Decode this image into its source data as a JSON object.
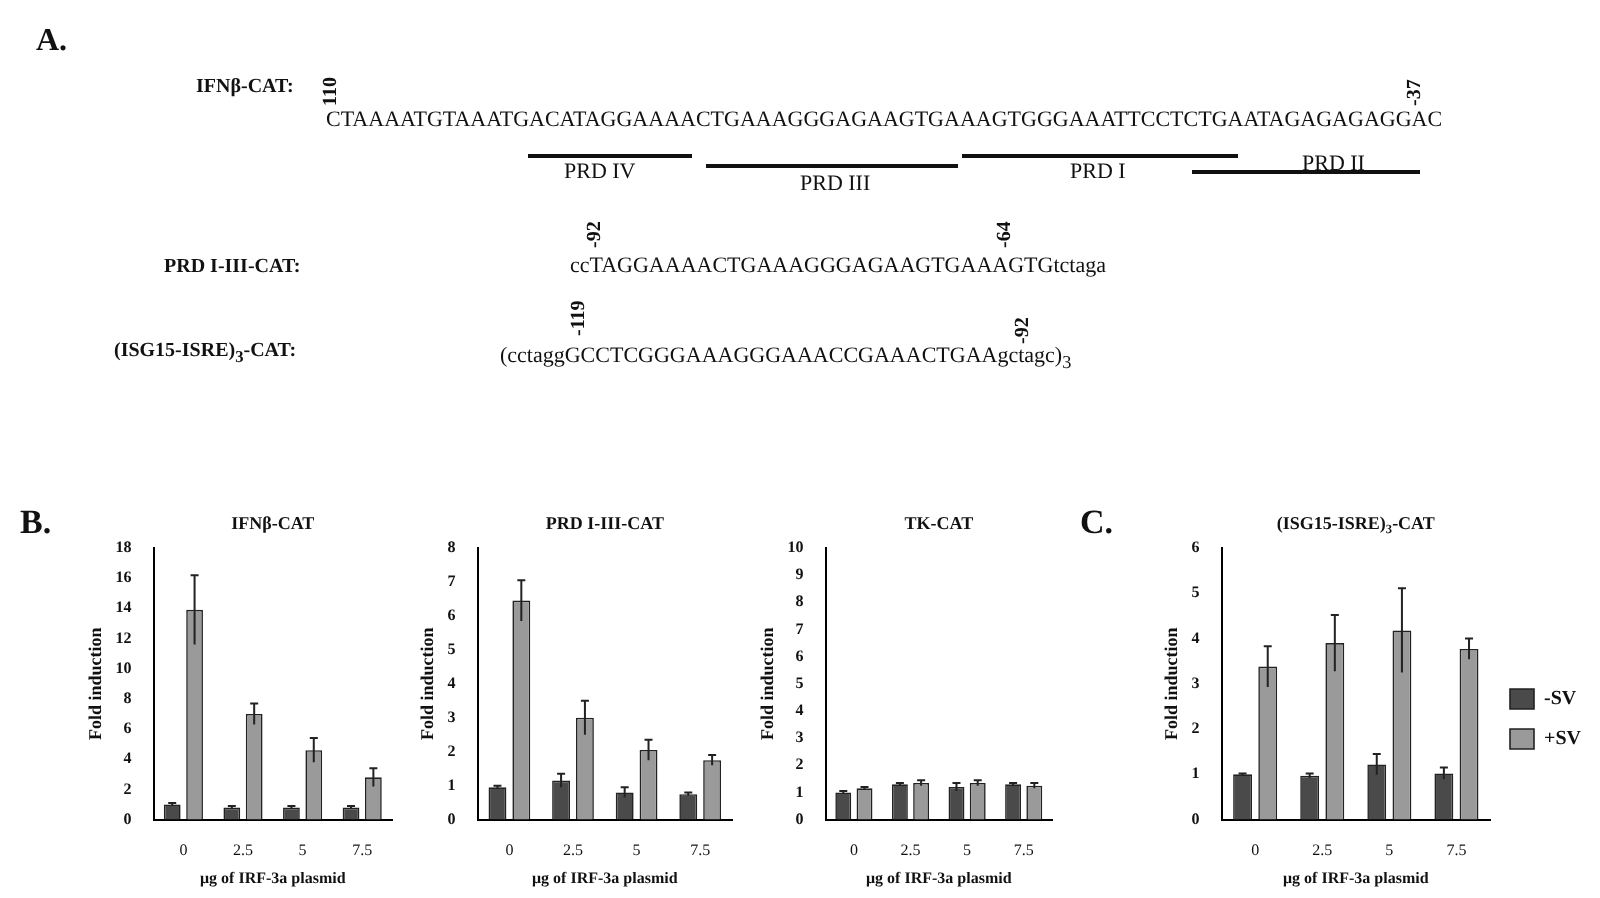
{
  "chart_data": [
    {
      "type": "other",
      "annotations": [
        "A.",
        "IFNβ-CAT:",
        "CTAAAATGTAAATGACATAGGAAAACTGAAAGGGAGAAGTGAAAGTGGGAAATTCCTCTGAATAGAGAGAGGAC",
        "110",
        "-37",
        "PRD IV",
        "PRD III",
        "PRD I",
        "PRD II",
        "PRD I-III-CAT:",
        "ccTAGGAAAACTGAAAGGGAGAAGTGAAAGTGtctaga",
        "-92",
        "-64",
        "(ISG15-ISRE)$_{3}$-CAT:",
        "(cctaggGCCTCGGGAAAGGGAAACCGAAACTGAAgctagc)$_{3}$",
        "-119",
        "-92"
      ]
    },
    {
      "type": "bar",
      "title": "IFNβ-CAT",
      "annotations": [
        "B."
      ],
      "xlabel": "μg of IRF-3a plasmid",
      "ylabel": "Fold induction",
      "categories": [
        "0",
        "2.5",
        "5",
        "7.5"
      ],
      "ylim": [
        0,
        18
      ],
      "yticks": [
        0,
        2,
        4,
        6,
        8,
        10,
        12,
        14,
        16,
        18
      ],
      "legend": false,
      "series": [
        {
          "color": "#4a4a4a",
          "values": [
            1.0,
            0.8,
            0.8,
            0.8
          ],
          "errors": [
            0.1,
            0.1,
            0.1,
            0.1
          ]
        },
        {
          "color": "#9a9a9a",
          "values": [
            13.9,
            7.0,
            4.6,
            2.8
          ],
          "errors": [
            2.3,
            0.7,
            0.8,
            0.6
          ]
        }
      ]
    },
    {
      "type": "bar",
      "title": "PRD I-III-CAT",
      "xlabel": "μg of IRF-3a plasmid",
      "ylabel": "Fold induction",
      "categories": [
        "0",
        "2.5",
        "5",
        "7.5"
      ],
      "ylim": [
        0,
        8
      ],
      "yticks": [
        0,
        1,
        2,
        3,
        4,
        5,
        6,
        7,
        8
      ],
      "legend": false,
      "series": [
        {
          "color": "#4a4a4a",
          "values": [
            0.95,
            1.15,
            0.8,
            0.75
          ],
          "errors": [
            0.05,
            0.2,
            0.15,
            0.05
          ]
        },
        {
          "color": "#9a9a9a",
          "values": [
            6.45,
            3.0,
            2.05,
            1.75
          ],
          "errors": [
            0.6,
            0.5,
            0.3,
            0.15
          ]
        }
      ]
    },
    {
      "type": "bar",
      "title": "TK-CAT",
      "xlabel": "μg of IRF-3a plasmid",
      "ylabel": "Fold induction",
      "categories": [
        "0",
        "2.5",
        "5",
        "7.5"
      ],
      "ylim": [
        0,
        10
      ],
      "yticks": [
        0,
        1,
        2,
        3,
        4,
        5,
        6,
        7,
        8,
        9,
        10
      ],
      "legend": false,
      "series": [
        {
          "color": "#4a4a4a",
          "values": [
            1.0,
            1.3,
            1.2,
            1.3
          ],
          "errors": [
            0.05,
            0.05,
            0.15,
            0.05
          ]
        },
        {
          "color": "#9a9a9a",
          "values": [
            1.15,
            1.35,
            1.35,
            1.25
          ],
          "errors": [
            0.05,
            0.1,
            0.1,
            0.1
          ]
        }
      ]
    },
    {
      "type": "bar",
      "title": "(ISG15-ISRE)$_{3}$-CAT",
      "annotations": [
        "C."
      ],
      "xlabel": "μg of IRF-3a plasmid",
      "ylabel": "Fold induction",
      "categories": [
        "0",
        "2.5",
        "5",
        "7.5"
      ],
      "ylim": [
        0,
        6
      ],
      "yticks": [
        0,
        1,
        2,
        3,
        4,
        5,
        6
      ],
      "legend": "right",
      "series": [
        {
          "name": "-SV",
          "color": "#4a4a4a",
          "values": [
            1.0,
            0.97,
            1.22,
            1.02
          ],
          "errors": [
            0.02,
            0.05,
            0.23,
            0.13
          ]
        },
        {
          "name": "+SV",
          "color": "#9a9a9a",
          "values": [
            3.38,
            3.9,
            4.18,
            3.77
          ],
          "errors": [
            0.45,
            0.62,
            0.93,
            0.23
          ]
        }
      ]
    }
  ]
}
